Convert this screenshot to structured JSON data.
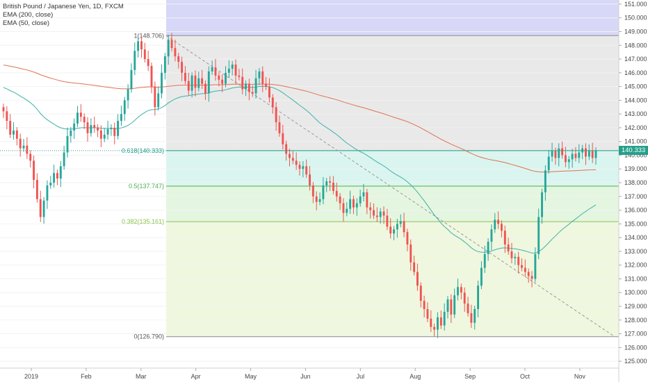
{
  "legend": {
    "symbol_line": "British Pound / Japanese Yen, 1D, FXCM",
    "ema200": "EMA (200, close)",
    "ema50": "EMA (50, close)"
  },
  "colors": {
    "up": "#26a69a",
    "down": "#ef5350",
    "ema200": "#e0714f",
    "ema50": "#3cb1a9",
    "band_top": "#c9caf5",
    "band_0_618": "#e2e2e2",
    "band_0_5": "#cdf2ea",
    "band_0_382": "#dbf3d6",
    "band_0": "#eaf4d3",
    "last_price_bg": "#23a08a"
  },
  "chart_data": {
    "type": "candlestick",
    "title": "British Pound / Japanese Yen, 1D, FXCM",
    "ylim": [
      124.5,
      151.3
    ],
    "y_ticks": [
      "125.000",
      "126.000",
      "127.000",
      "128.000",
      "129.000",
      "130.000",
      "131.000",
      "132.000",
      "133.000",
      "134.000",
      "135.000",
      "136.000",
      "137.000",
      "138.000",
      "139.000",
      "140.000",
      "141.000",
      "142.000",
      "143.000",
      "144.000",
      "145.000",
      "146.000",
      "147.000",
      "148.000",
      "149.000",
      "150.000",
      "151.000"
    ],
    "x_ticks": [
      "2019",
      "Feb",
      "Mar",
      "Apr",
      "May",
      "Jun",
      "Jul",
      "Aug",
      "Sep",
      "Oct",
      "Nov"
    ],
    "last_price": "140.333",
    "fib_levels": [
      {
        "label": "1(148.706)",
        "value": 148.706
      },
      {
        "label": "0.618(140.333)",
        "value": 140.333
      },
      {
        "label": "0.5(137.747)",
        "value": 137.747
      },
      {
        "label": "0.382(135.161)",
        "value": 135.161
      },
      {
        "label": "0(126.790)",
        "value": 126.79
      }
    ],
    "trend_line": {
      "from_value": 148.706,
      "to_value": 126.79
    },
    "closes": [
      143.2,
      142.5,
      141.5,
      141.8,
      141.2,
      140.5,
      140.7,
      140.1,
      139.6,
      138.2,
      136.8,
      135.5,
      136.7,
      137.8,
      138.0,
      138.7,
      138.3,
      139.2,
      140.2,
      141.4,
      141.8,
      142.3,
      143.1,
      142.8,
      142.4,
      141.6,
      142.2,
      142.0,
      141.8,
      141.2,
      141.5,
      141.9,
      142.0,
      141.4,
      142.5,
      143.0,
      144.0,
      144.8,
      146.2,
      147.6,
      148.3,
      147.7,
      147.0,
      146.5,
      145.0,
      143.5,
      144.5,
      146.0,
      147.2,
      148.4,
      147.8,
      147.2,
      146.8,
      146.0,
      145.4,
      144.7,
      145.8,
      144.9,
      145.6,
      145.2,
      144.5,
      146.1,
      146.4,
      145.8,
      145.5,
      145.2,
      146.0,
      146.3,
      146.6,
      145.8,
      145.7,
      144.8,
      145.2,
      144.6,
      144.5,
      145.6,
      146.1,
      145.2,
      145.0,
      144.2,
      143.5,
      142.4,
      141.6,
      140.8,
      140.1,
      139.8,
      139.6,
      139.3,
      139.0,
      139.2,
      138.6,
      137.8,
      137.0,
      136.6,
      136.8,
      137.8,
      138.1,
      138.0,
      137.4,
      137.0,
      136.5,
      135.8,
      136.1,
      136.8,
      136.2,
      136.5,
      137.0,
      137.3,
      136.2,
      136.0,
      135.6,
      135.5,
      135.9,
      135.6,
      134.8,
      134.3,
      134.6,
      135.0,
      135.2,
      134.4,
      133.5,
      132.2,
      131.5,
      130.5,
      129.4,
      128.8,
      128.1,
      127.5,
      127.3,
      128.2,
      127.6,
      128.6,
      129.5,
      128.4,
      129.8,
      130.4,
      130.0,
      129.2,
      128.5,
      127.8,
      128.8,
      130.5,
      131.8,
      132.8,
      133.7,
      134.6,
      135.3,
      135.0,
      134.5,
      133.5,
      133.0,
      132.5,
      132.6,
      132.0,
      131.8,
      131.5,
      131.2,
      131.0,
      132.8,
      135.5,
      137.3,
      138.9,
      139.9,
      140.3,
      139.8,
      140.5,
      140.0,
      139.5,
      139.7,
      140.1,
      139.8,
      140.2,
      140.5,
      139.9,
      140.3,
      139.8,
      140.33
    ]
  }
}
